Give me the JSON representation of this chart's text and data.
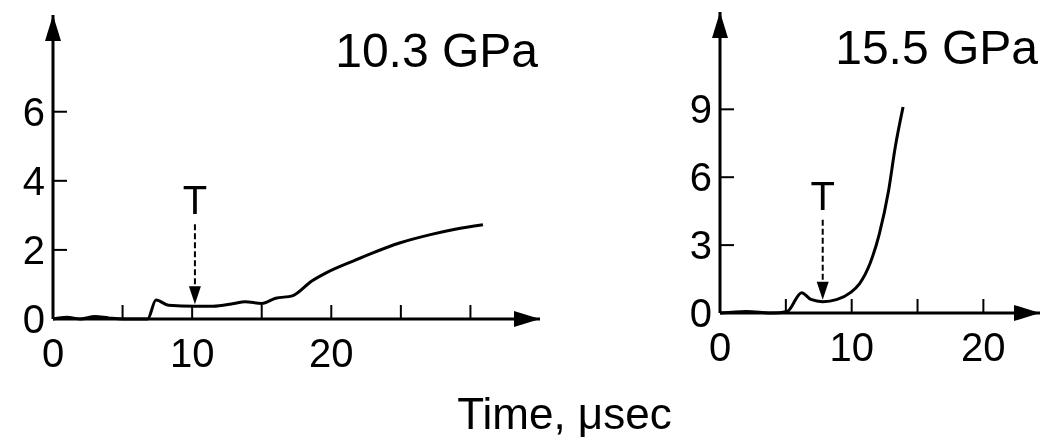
{
  "chart_data": [
    {
      "type": "line",
      "title": "10.3 GPa",
      "xlabel": "Time, μsec",
      "xlim": [
        0,
        35
      ],
      "ylim": [
        0,
        8.8
      ],
      "xticks": [
        0,
        {
          "value": 5,
          "label": null
        },
        10,
        {
          "value": 15,
          "label": null
        },
        20,
        {
          "value": 25,
          "label": null
        },
        {
          "value": 30,
          "label": null
        }
      ],
      "yticks": [
        0,
        2,
        4,
        6
      ],
      "grid": false,
      "marker": "none",
      "line_style": "solid",
      "annotations": [
        {
          "text": "T",
          "x": 10.2,
          "y": 0.37
        }
      ],
      "series": [
        {
          "color": "#000000",
          "x": [
            0,
            1,
            2,
            3,
            4,
            5,
            6,
            6.8,
            7.4,
            8.3,
            10.2,
            11.5,
            13.0,
            13.8,
            15.0,
            16.0,
            17.2,
            18.6,
            19.7,
            21.7,
            22.9,
            24.9,
            27.2,
            28.9,
            30.9
          ],
          "values": [
            0,
            0.05,
            0,
            0.07,
            0.03,
            0,
            0,
            0,
            0.55,
            0.4,
            0.37,
            0.37,
            0.45,
            0.5,
            0.45,
            0.6,
            0.67,
            1.1,
            1.35,
            1.7,
            1.9,
            2.2,
            2.45,
            2.6,
            2.73
          ]
        }
      ]
    },
    {
      "type": "line",
      "title": "15.5 GPa",
      "xlim": [
        0,
        24.3
      ],
      "ylim": [
        0,
        13.3
      ],
      "xticks": [
        0,
        {
          "value": 5,
          "label": null
        },
        10,
        {
          "value": 15,
          "label": null
        },
        20
      ],
      "yticks": [
        0,
        3,
        6,
        9
      ],
      "grid": false,
      "marker": "none",
      "line_style": "solid",
      "annotations": [
        {
          "text": "T",
          "x": 7.8,
          "y": 0.5
        }
      ],
      "series": [
        {
          "color": "#000000",
          "x": [
            0,
            2,
            4,
            5.1,
            6.2,
            6.9,
            7.8,
            8.9,
            9.9,
            10.6,
            11.4,
            12.1,
            12.8,
            13.3,
            13.9
          ],
          "values": [
            0,
            0.07,
            0,
            0.07,
            0.9,
            0.6,
            0.5,
            0.6,
            0.9,
            1.3,
            2.2,
            3.5,
            5.4,
            7.3,
            9.1
          ]
        }
      ]
    }
  ]
}
